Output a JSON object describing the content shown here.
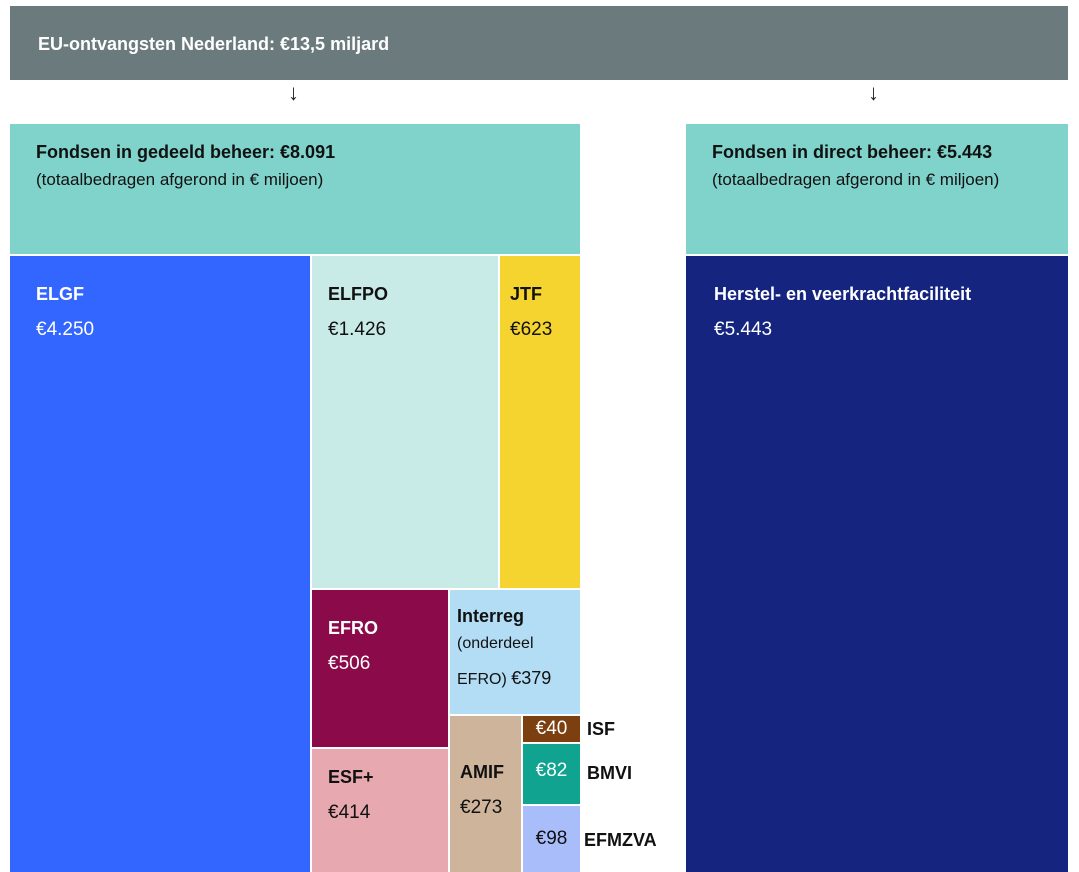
{
  "header": {
    "title": "EU-ontvangsten Nederland: €13,5 miljard"
  },
  "panels": [
    {
      "title": "Fondsen in gedeeld beheer: €8.091",
      "subtitle": "(totaalbedragen afgerond in € miljoen)"
    },
    {
      "title": "Fondsen in direct beheer: €5.443",
      "subtitle": "(totaalbedragen afgerond in € miljoen)"
    }
  ],
  "funds": [
    {
      "name": "ELGF",
      "amount": "€4.250"
    },
    {
      "name": "ELFPO",
      "amount": "€1.426"
    },
    {
      "name": "JTF",
      "amount": "€623"
    },
    {
      "name": "EFRO",
      "amount": "€506"
    },
    {
      "name": "Interreg",
      "note": "(onderdeel EFRO)",
      "amount": "€379"
    },
    {
      "name": "ESF+",
      "amount": "€414"
    },
    {
      "name": "AMIF",
      "amount": "€273"
    },
    {
      "name": "ISF",
      "amount": "€40"
    },
    {
      "name": "BMVI",
      "amount": "€82"
    },
    {
      "name": "EFMZVA",
      "amount": "€98"
    },
    {
      "name": "Herstel- en veerkrachtfaciliteit",
      "amount": "€5.443"
    }
  ]
}
